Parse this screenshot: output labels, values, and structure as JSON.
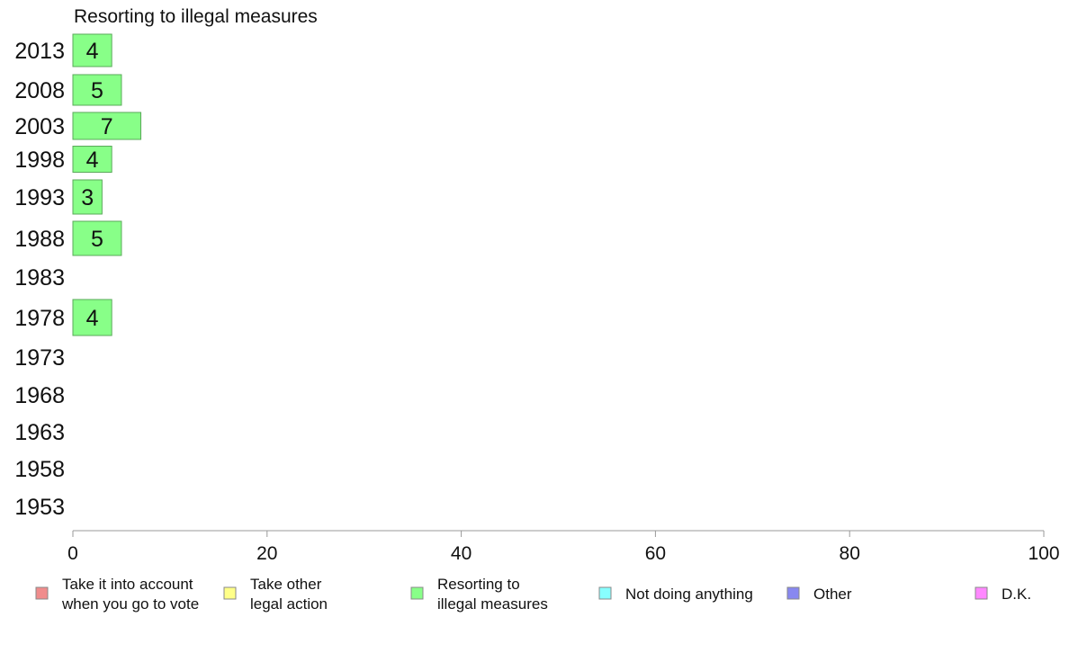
{
  "chart_data": {
    "type": "bar",
    "title": "Resorting to illegal measures",
    "xlabel": "",
    "ylabel": "",
    "xlim": [
      0,
      100
    ],
    "x_ticks": [
      0,
      20,
      40,
      60,
      80,
      100
    ],
    "grid": false,
    "orientation": "horizontal",
    "categories": [
      "2013",
      "2008",
      "2003",
      "1998",
      "1993",
      "1988",
      "1983",
      "1978",
      "1973",
      "1968",
      "1963",
      "1958",
      "1953"
    ],
    "series": [
      {
        "name": "Resorting to illegal measures",
        "color": "#88ff88",
        "values": [
          4,
          5,
          7,
          4,
          3,
          5,
          null,
          4,
          null,
          null,
          null,
          null,
          null
        ],
        "labels": [
          "4",
          "5",
          "7",
          "4",
          "3",
          "5",
          "",
          "4",
          "",
          "",
          "",
          "",
          ""
        ]
      }
    ],
    "legend_position": "bottom",
    "legend": [
      {
        "label_lines": [
          "Take it into account",
          "when you go to vote"
        ],
        "color": "#f08c8c"
      },
      {
        "label_lines": [
          "Take other",
          "legal action"
        ],
        "color": "#ffff88"
      },
      {
        "label_lines": [
          "Resorting to",
          "illegal measures"
        ],
        "color": "#88ff88"
      },
      {
        "label_lines": [
          "Not doing anything"
        ],
        "color": "#88ffff"
      },
      {
        "label_lines": [
          "Other"
        ],
        "color": "#8888f0"
      },
      {
        "label_lines": [
          "D.K."
        ],
        "color": "#ff88ff"
      }
    ]
  }
}
